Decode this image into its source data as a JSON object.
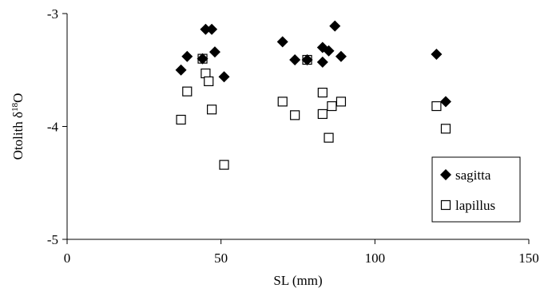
{
  "chart_data": {
    "type": "scatter",
    "xlabel": "SL (mm)",
    "ylabel": "Otolith δ¹⁸O",
    "ylabel_prefix": "Otolith  δ",
    "ylabel_sup": "18",
    "ylabel_suffix": "O",
    "xlim": [
      0,
      150
    ],
    "ylim": [
      -5,
      -3
    ],
    "x_ticks": [
      0,
      50,
      100,
      150
    ],
    "y_ticks": [
      -5,
      -4,
      -3
    ],
    "x_tick_labels": [
      "0",
      "50",
      "100",
      "150"
    ],
    "y_tick_labels": [
      "-5",
      "-4",
      "-3"
    ],
    "grid": false,
    "legend_position": "bottom-right",
    "series": [
      {
        "name": "sagitta",
        "marker": "filled-diamond",
        "color": "#000000",
        "points": [
          {
            "x": 37,
            "y": -3.5
          },
          {
            "x": 39,
            "y": -3.38
          },
          {
            "x": 44,
            "y": -3.4
          },
          {
            "x": 45,
            "y": -3.14
          },
          {
            "x": 47,
            "y": -3.14
          },
          {
            "x": 48,
            "y": -3.34
          },
          {
            "x": 51,
            "y": -3.56
          },
          {
            "x": 70,
            "y": -3.25
          },
          {
            "x": 74,
            "y": -3.41
          },
          {
            "x": 78,
            "y": -3.41
          },
          {
            "x": 83,
            "y": -3.43
          },
          {
            "x": 83,
            "y": -3.3
          },
          {
            "x": 85,
            "y": -3.33
          },
          {
            "x": 87,
            "y": -3.11
          },
          {
            "x": 89,
            "y": -3.38
          },
          {
            "x": 120,
            "y": -3.36
          },
          {
            "x": 123,
            "y": -3.78
          }
        ]
      },
      {
        "name": "lapillus",
        "marker": "open-square",
        "color": "#000000",
        "points": [
          {
            "x": 37,
            "y": -3.94
          },
          {
            "x": 39,
            "y": -3.69
          },
          {
            "x": 44,
            "y": -3.4
          },
          {
            "x": 45,
            "y": -3.53
          },
          {
            "x": 46,
            "y": -3.6
          },
          {
            "x": 47,
            "y": -3.85
          },
          {
            "x": 51,
            "y": -4.34
          },
          {
            "x": 70,
            "y": -3.78
          },
          {
            "x": 74,
            "y": -3.9
          },
          {
            "x": 78,
            "y": -3.41
          },
          {
            "x": 83,
            "y": -3.89
          },
          {
            "x": 83,
            "y": -3.7
          },
          {
            "x": 85,
            "y": -4.1
          },
          {
            "x": 86,
            "y": -3.82
          },
          {
            "x": 89,
            "y": -3.78
          },
          {
            "x": 120,
            "y": -3.82
          },
          {
            "x": 123,
            "y": -4.02
          }
        ]
      }
    ],
    "legend": [
      {
        "label": "sagitta",
        "marker": "filled-diamond"
      },
      {
        "label": "lapillus",
        "marker": "open-square"
      }
    ]
  }
}
